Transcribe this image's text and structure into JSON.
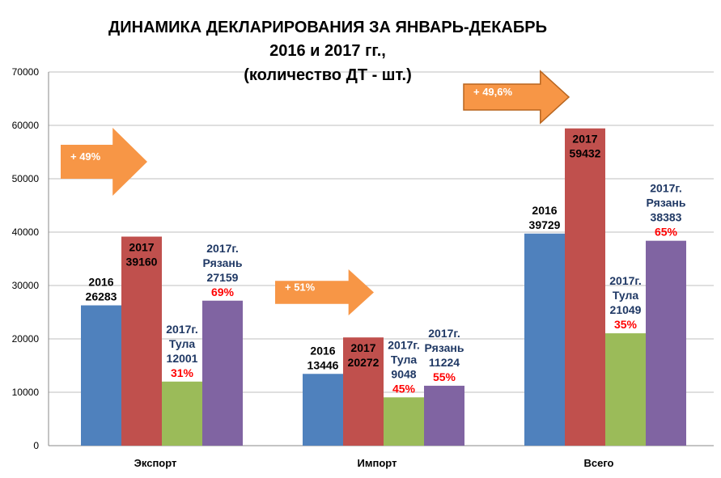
{
  "chart_data": {
    "type": "bar",
    "title": [
      "ДИНАМИКА ДЕКЛАРИРОВАНИЯ ЗА  ЯНВАРЬ-ДЕКАБРЬ",
      "2016 и 2017 гг.,",
      "(количество ДТ - шт.)"
    ],
    "categories": [
      "Экспорт",
      "Импорт",
      "Всего"
    ],
    "ylim": [
      0,
      70000
    ],
    "yticks": [
      "0",
      "10000",
      "20000",
      "30000",
      "40000",
      "50000",
      "60000",
      "70000"
    ],
    "grid": true,
    "series": [
      {
        "name": "2016",
        "color": "#4F81BD",
        "values": [
          26283,
          13446,
          39729
        ]
      },
      {
        "name": "2017",
        "color": "#C0504D",
        "values": [
          39160,
          20272,
          59432
        ]
      },
      {
        "name": "2017г. Тула",
        "color": "#9BBB59",
        "values": [
          12001,
          9048,
          21049
        ]
      },
      {
        "name": "2017г. Рязань",
        "color": "#8064A2",
        "values": [
          27159,
          11224,
          38383
        ]
      }
    ],
    "data_labels": [
      [
        [
          "2016",
          "26283"
        ],
        [
          "2017",
          "39160"
        ],
        [
          "2017г.",
          "Тула",
          "12001",
          "31%"
        ],
        [
          "2017г.",
          "Рязань",
          "27159",
          "69%"
        ]
      ],
      [
        [
          "2016",
          "13446"
        ],
        [
          "2017",
          "20272"
        ],
        [
          "2017г.",
          "Тула",
          "9048",
          "45%"
        ],
        [
          "2017г.",
          "Рязань",
          "11224",
          "55%"
        ]
      ],
      [
        [
          "2016",
          "39729"
        ],
        [
          "2017",
          "59432"
        ],
        [
          "2017г.",
          "Тула",
          "21049",
          "35%"
        ],
        [
          "2017г.",
          "Рязань",
          "38383",
          "65%"
        ]
      ]
    ],
    "annotations": [
      "+ 49%",
      "+ 51%",
      "+ 49,6%"
    ],
    "colors": {
      "arrow": "#F79646",
      "arrow_border": "#B8651F",
      "percent": "#FF0000",
      "region_text": "#1F3864",
      "grid": "#BFBFBF"
    }
  }
}
